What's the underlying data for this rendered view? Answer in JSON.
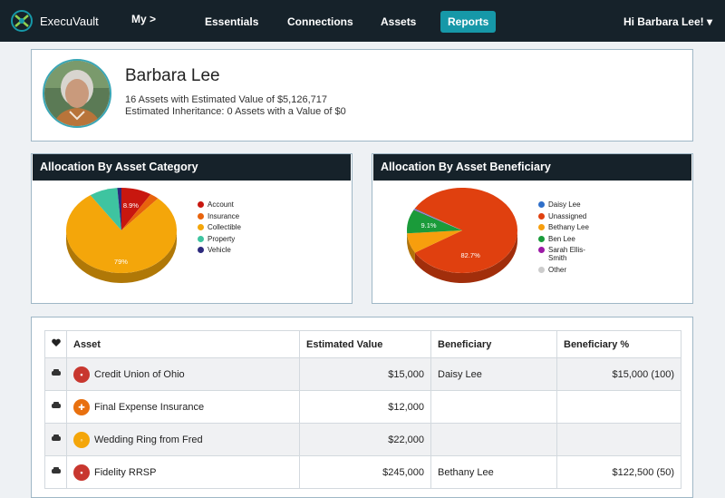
{
  "nav": {
    "brand": "ExecuVault",
    "my": "My",
    "my_chevron": ">",
    "items": [
      "Essentials",
      "Connections",
      "Assets",
      "Reports"
    ],
    "user_menu": "Hi Barbara Lee! ▾"
  },
  "profile": {
    "name": "Barbara Lee",
    "assets_summary": "16 Assets with Estimated Value of $5,126,717",
    "inheritance_summary": "Estimated Inheritance: 0 Assets with a Value of $0"
  },
  "charts": [
    {
      "title": "Allocation By Asset Category",
      "chart_data": {
        "type": "pie",
        "title": "Allocation By Asset Category",
        "labels": [
          "Account",
          "Insurance",
          "Collectible",
          "Property",
          "Vehicle"
        ],
        "values": [
          8.9,
          2.6,
          79,
          8.3,
          1.2
        ],
        "colors": [
          "#c8170f",
          "#e8630c",
          "#f4a60a",
          "#3ec4a0",
          "#2d2a7d"
        ],
        "data_labels": [
          "8.9%",
          "",
          "79%",
          "",
          ""
        ],
        "legend_position": "right"
      }
    },
    {
      "title": "Allocation By Asset Beneficiary",
      "chart_data": {
        "type": "pie",
        "title": "Allocation By Asset Beneficiary",
        "labels": [
          "Daisy Lee",
          "Unassigned",
          "Bethany Lee",
          "Ben Lee",
          "Sarah Ellis-Smith",
          "Other"
        ],
        "values": [
          0.3,
          82.7,
          7.6,
          9.1,
          0.2,
          0.1
        ],
        "colors": [
          "#2f6fc9",
          "#e0400f",
          "#f79e0d",
          "#1a9b3a",
          "#9c1aa6",
          "#cccccc"
        ],
        "data_labels": [
          "",
          "82.7%",
          "",
          "9.1%",
          "",
          ""
        ],
        "legend_position": "right"
      }
    }
  ],
  "table": {
    "headers": [
      "",
      "Asset",
      "Estimated Value",
      "Beneficiary",
      "Beneficiary %"
    ],
    "rows": [
      {
        "type_icon": "car-icon",
        "asset_icon": "account-icon",
        "asset_color": "#c8372f",
        "asset": "Credit Union of Ohio",
        "value": "$15,000",
        "beneficiary": "Daisy Lee",
        "pct": "$15,000 (100)"
      },
      {
        "type_icon": "coins-icon",
        "asset_icon": "insurance-icon",
        "asset_color": "#e8700f",
        "asset": "Final Expense Insurance",
        "value": "$12,000",
        "beneficiary": "",
        "pct": ""
      },
      {
        "type_icon": "mail-icon",
        "asset_icon": "ring-icon",
        "asset_color": "#f4a60a",
        "asset": "Wedding Ring from Fred",
        "value": "$22,000",
        "beneficiary": "",
        "pct": ""
      },
      {
        "type_icon": "car-icon",
        "asset_icon": "account-icon",
        "asset_color": "#c8372f",
        "asset": "Fidelity RRSP",
        "value": "$245,000",
        "beneficiary": "Bethany Lee",
        "pct": "$122,500 (50)"
      }
    ]
  }
}
